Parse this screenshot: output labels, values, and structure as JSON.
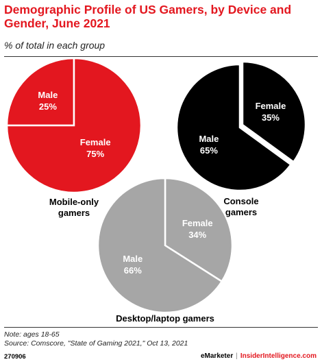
{
  "header": {
    "title": "Demographic Profile of US Gamers, by Device and Gender, June 2021",
    "subtitle": "% of total in each group"
  },
  "chart_data": {
    "type": "pie",
    "unit": "%",
    "title": "Demographic Profile of US Gamers, by Device and Gender, June 2021",
    "subtitle": "% of total in each group",
    "pies": [
      {
        "name": "Mobile-only gamers",
        "label_lines": [
          "Mobile-only",
          "gamers"
        ],
        "color": "#e3171f",
        "slices": [
          {
            "label": "Male",
            "value": 25
          },
          {
            "label": "Female",
            "value": 75
          }
        ]
      },
      {
        "name": "Console gamers",
        "label_lines": [
          "Console",
          "gamers"
        ],
        "color": "#000000",
        "slices": [
          {
            "label": "Female",
            "value": 35
          },
          {
            "label": "Male",
            "value": 65
          }
        ]
      },
      {
        "name": "Desktop/laptop gamers",
        "label_lines": [
          "Desktop/laptop gamers"
        ],
        "color": "#a6a6a6",
        "slices": [
          {
            "label": "Female",
            "value": 34
          },
          {
            "label": "Male",
            "value": 66
          }
        ]
      }
    ]
  },
  "footer": {
    "note": "Note: ages 18-65",
    "source": "Source: Comscore, \"State of Gaming 2021,\" Oct 13, 2021",
    "chart_id": "270906",
    "brand_left": "eMarketer",
    "separator": "|",
    "brand_right": "InsiderIntelligence.com"
  }
}
